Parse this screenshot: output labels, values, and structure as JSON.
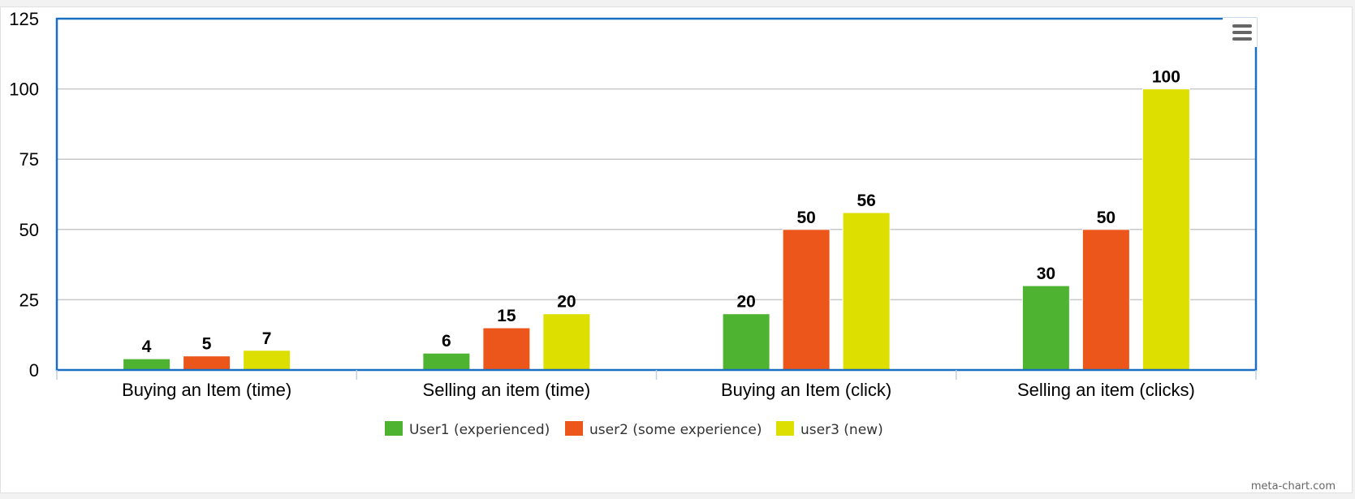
{
  "chart_data": {
    "type": "bar",
    "title": "",
    "xlabel": "",
    "ylabel": "",
    "categories": [
      "Buying an Item (time)",
      "Selling an item (time)",
      "Buying an Item (click)",
      "Selling an item (clicks)"
    ],
    "series": [
      {
        "name": "User1 (experienced)",
        "color": "#4db330",
        "values": [
          4,
          6,
          20,
          30
        ]
      },
      {
        "name": "user2 (some experience)",
        "color": "#ec561b",
        "values": [
          5,
          15,
          50,
          50
        ]
      },
      {
        "name": "user3 (new)",
        "color": "#dddf00",
        "values": [
          7,
          20,
          56,
          100
        ]
      }
    ],
    "ylim": [
      0,
      125
    ],
    "yticks": [
      "0",
      "25",
      "50",
      "75",
      "100",
      "125"
    ],
    "grid": true,
    "legend": "bottom-center",
    "data_labels": true
  },
  "menu_icon": "hamburger-menu-icon",
  "credit": "meta-chart.com"
}
